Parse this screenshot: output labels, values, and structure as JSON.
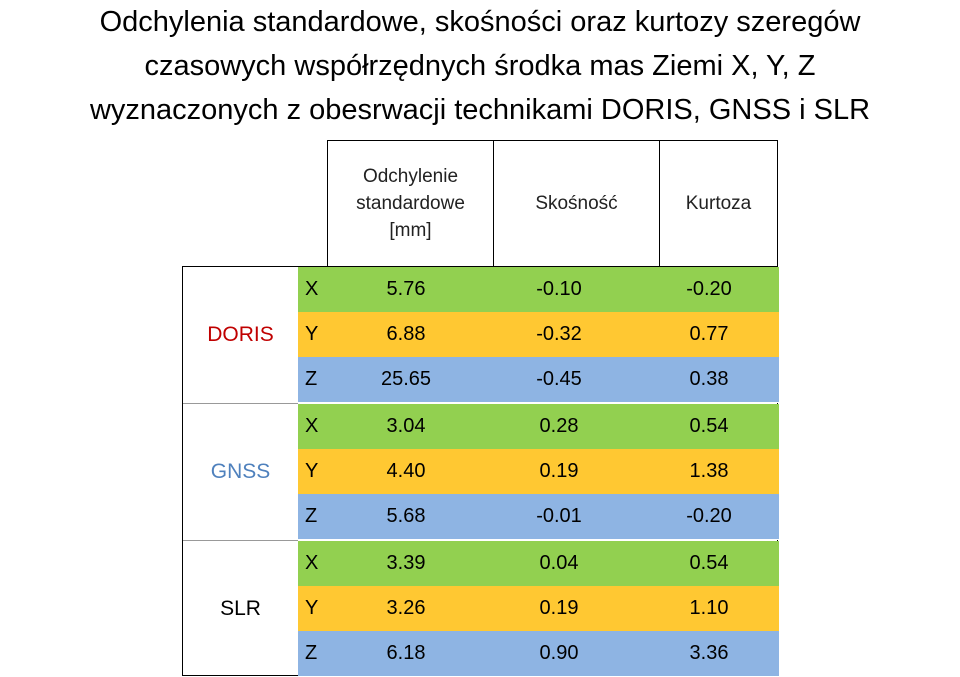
{
  "title": {
    "line1": "Odchylenia standardowe, skośności oraz kurtozy szeregów",
    "line2": "czasowych współrzędnych środka mas Ziemi X, Y, Z",
    "line3": "wyznaczonych z obesrwacji technikami DORIS, GNSS i SLR"
  },
  "headers": {
    "std_line1": "Odchylenie",
    "std_line2": "standardowe",
    "std_line3": "[mm]",
    "skew": "Skośność",
    "kurt": "Kurtoza"
  },
  "colors": {
    "row_x": "#92d050",
    "row_y": "#ffc832",
    "row_z": "#8eb4e3",
    "doris_label": "#c00000",
    "gnss_label": "#4f81bd",
    "slr_label": "#000000"
  },
  "techniques": [
    {
      "name": "DORIS",
      "rows": [
        {
          "axis": "X",
          "std": "5.76",
          "skew": "-0.10",
          "kurt": "-0.20"
        },
        {
          "axis": "Y",
          "std": "6.88",
          "skew": "-0.32",
          "kurt": "0.77"
        },
        {
          "axis": "Z",
          "std": "25.65",
          "skew": "-0.45",
          "kurt": "0.38"
        }
      ]
    },
    {
      "name": "GNSS",
      "rows": [
        {
          "axis": "X",
          "std": "3.04",
          "skew": "0.28",
          "kurt": "0.54"
        },
        {
          "axis": "Y",
          "std": "4.40",
          "skew": "0.19",
          "kurt": "1.38"
        },
        {
          "axis": "Z",
          "std": "5.68",
          "skew": "-0.01",
          "kurt": "-0.20"
        }
      ]
    },
    {
      "name": "SLR",
      "rows": [
        {
          "axis": "X",
          "std": "3.39",
          "skew": "0.04",
          "kurt": "0.54"
        },
        {
          "axis": "Y",
          "std": "3.26",
          "skew": "0.19",
          "kurt": "1.10"
        },
        {
          "axis": "Z",
          "std": "6.18",
          "skew": "0.90",
          "kurt": "3.36"
        }
      ]
    }
  ]
}
